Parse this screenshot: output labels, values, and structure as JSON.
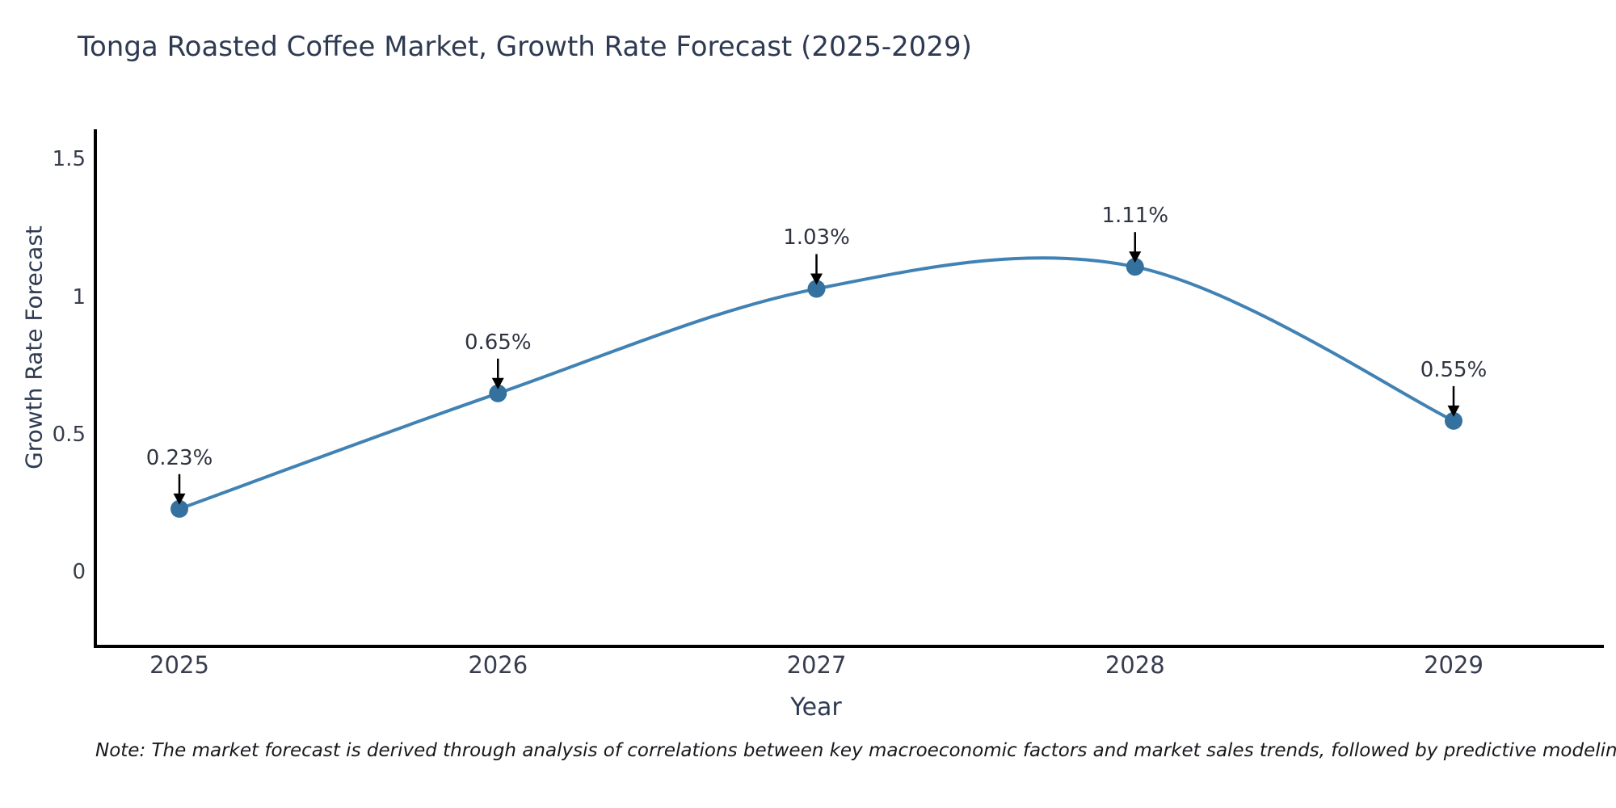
{
  "chart_data": {
    "type": "line",
    "title": "Tonga Roasted Coffee Market, Growth Rate Forecast (2025-2029)",
    "xlabel": "Year",
    "ylabel": "Growth Rate Forecast",
    "categories": [
      "2025",
      "2026",
      "2027",
      "2028",
      "2029"
    ],
    "x": [
      2025,
      2026,
      2027,
      2028,
      2029
    ],
    "values": [
      0.23,
      0.65,
      1.03,
      1.11,
      0.55
    ],
    "point_labels": [
      "0.23%",
      "0.65%",
      "1.03%",
      "1.11%",
      "0.55%"
    ],
    "yticks": [
      0,
      0.5,
      1,
      1.5
    ],
    "ytick_labels": [
      "0",
      "0.5",
      "1",
      "1.5"
    ],
    "ylim": [
      -0.27,
      1.61
    ],
    "line_shape": "spline",
    "grid": false,
    "legend": "none",
    "line_color": "#4182b4",
    "marker_color": "#34719f",
    "arrow_color": "#000000",
    "axis_color": "#000000",
    "note": "Note: The market forecast is derived through analysis of correlations between key macroeconomic factors and market sales trends, followed by predictive modeling to project future sales"
  }
}
